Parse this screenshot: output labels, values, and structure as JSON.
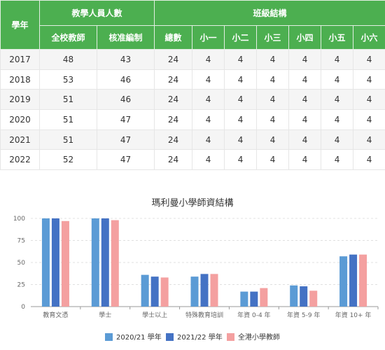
{
  "table": {
    "header_group": {
      "year": "學年",
      "staff": "教學人員人數",
      "classes": "班級結構"
    },
    "header_sub": [
      "全校教師",
      "核准編制",
      "總數",
      "小一",
      "小二",
      "小三",
      "小四",
      "小五",
      "小六"
    ],
    "rows": [
      [
        "2017",
        "48",
        "43",
        "24",
        "4",
        "4",
        "4",
        "4",
        "4",
        "4"
      ],
      [
        "2018",
        "53",
        "46",
        "24",
        "4",
        "4",
        "4",
        "4",
        "4",
        "4"
      ],
      [
        "2019",
        "51",
        "46",
        "24",
        "4",
        "4",
        "4",
        "4",
        "4",
        "4"
      ],
      [
        "2020",
        "51",
        "47",
        "24",
        "4",
        "4",
        "4",
        "4",
        "4",
        "4"
      ],
      [
        "2021",
        "51",
        "47",
        "24",
        "4",
        "4",
        "4",
        "4",
        "4",
        "4"
      ],
      [
        "2022",
        "52",
        "47",
        "24",
        "4",
        "4",
        "4",
        "4",
        "4",
        "4"
      ]
    ]
  },
  "chart_data": {
    "type": "bar",
    "title": "瑪利曼小學師資結構",
    "categories": [
      "教育文憑",
      "學士",
      "學士以上",
      "特殊教育培訓",
      "年資 0-4 年",
      "年資 5-9 年",
      "年資 10+ 年"
    ],
    "series": [
      {
        "name": "2020/21 學年",
        "color": "#5b9bd5",
        "values": [
          100,
          100,
          36,
          34,
          17,
          24,
          57
        ]
      },
      {
        "name": "2021/22 學年",
        "color": "#4472c4",
        "values": [
          100,
          100,
          34,
          37,
          17,
          23,
          59
        ]
      },
      {
        "name": "全港小學教師",
        "color": "#f4a0a0",
        "values": [
          97,
          98,
          33,
          37,
          21,
          18,
          59
        ]
      }
    ],
    "ylim": [
      0,
      100
    ],
    "yticks": [
      0,
      25,
      50,
      75,
      100
    ],
    "grid": true,
    "legend_position": "bottom"
  }
}
